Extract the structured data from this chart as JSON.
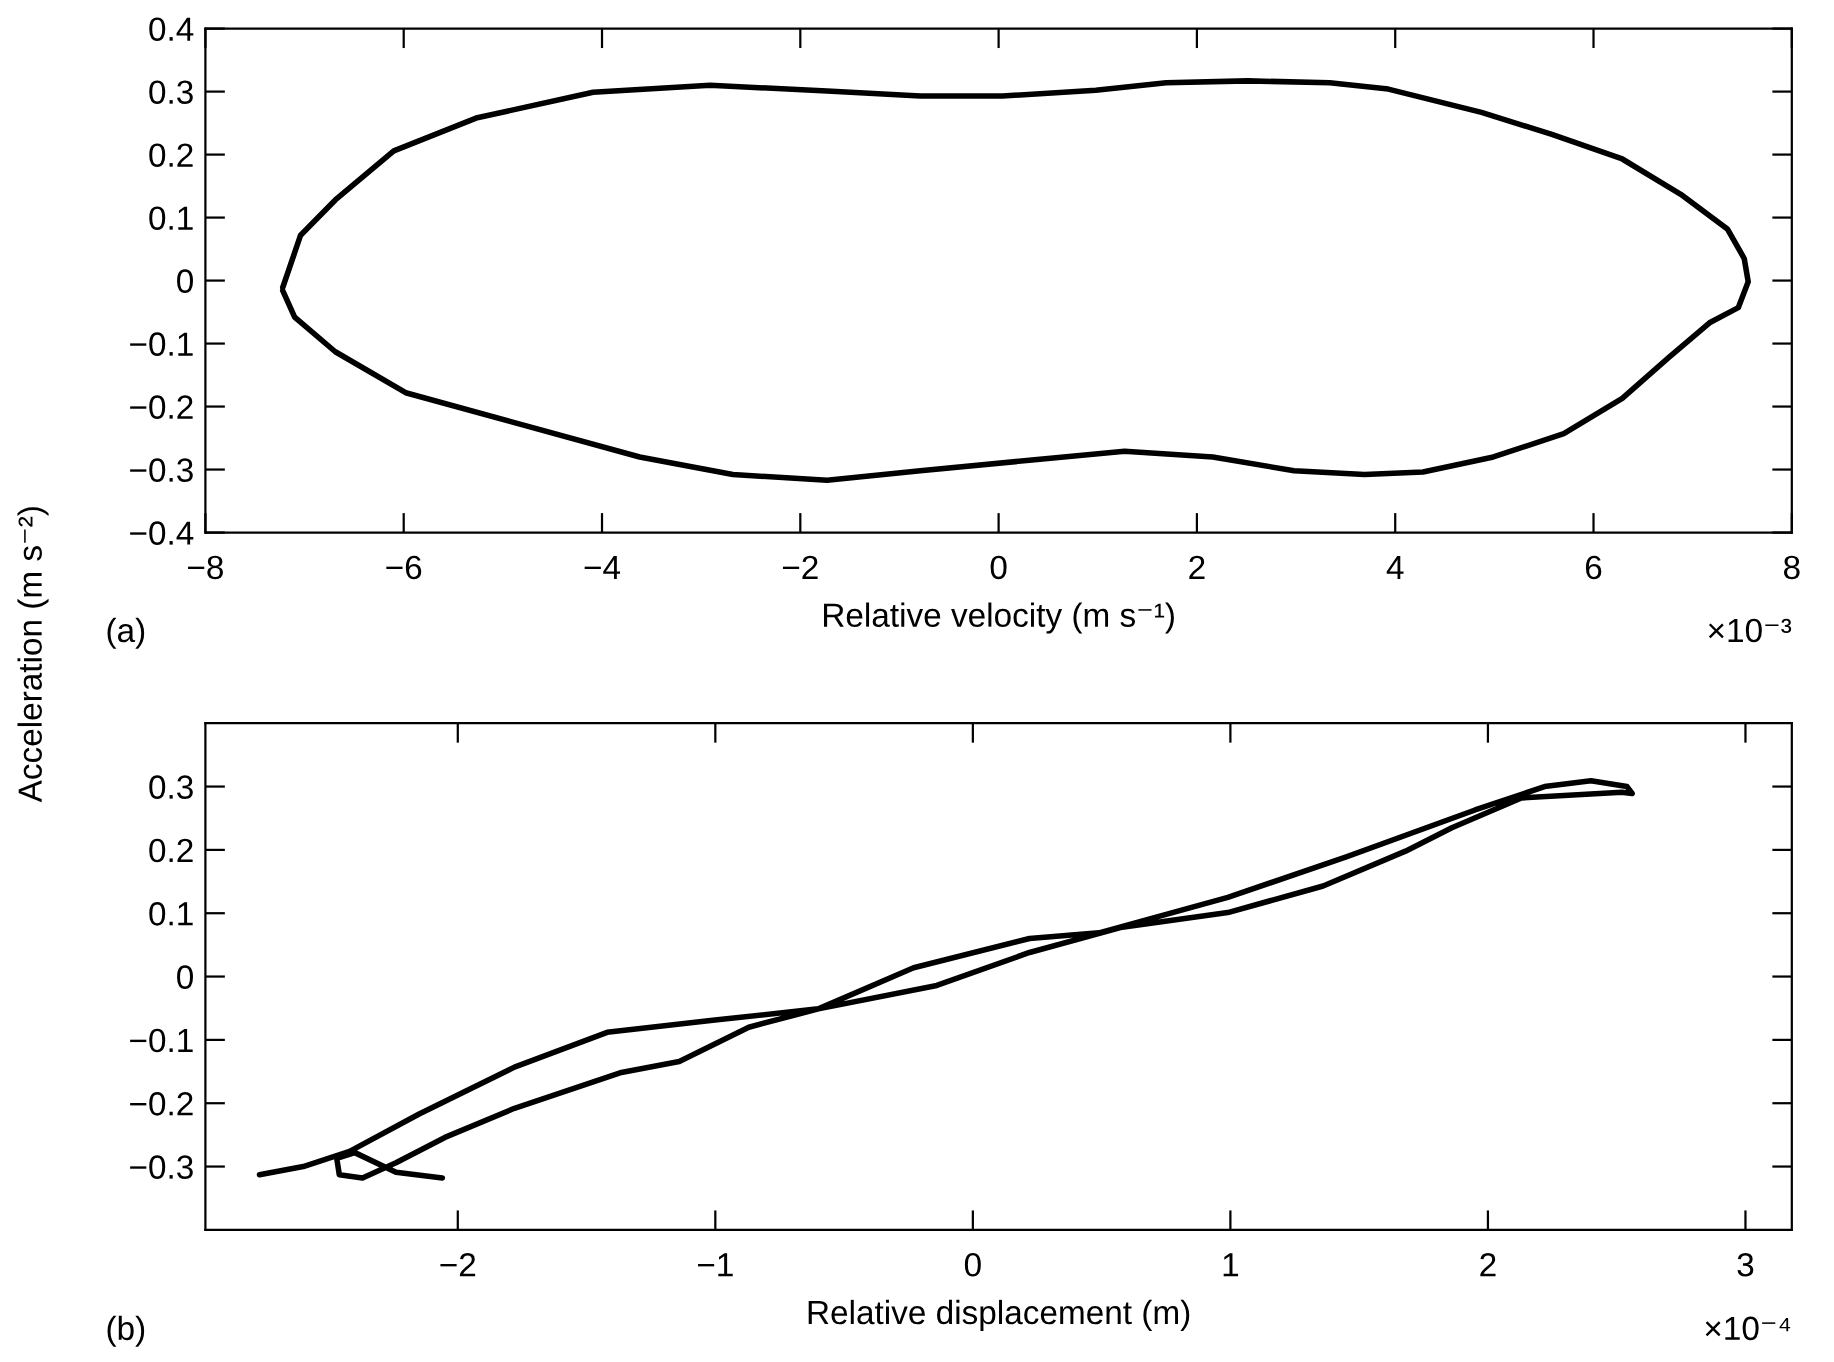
{
  "chart_data": [
    {
      "type": "line",
      "xlabel": "Relative velocity (m s⁻¹)",
      "ylabel": "Acceleration (m s⁻²)",
      "annotations": [
        "(a)",
        "×10⁻³"
      ],
      "xlim": [
        -8,
        8
      ],
      "xticks": [
        -8,
        -6,
        -4,
        -2,
        0,
        2,
        4,
        6,
        8
      ],
      "ylim": [
        -0.4,
        0.4
      ],
      "yticks": [
        -0.4,
        -0.3,
        -0.2,
        -0.1,
        0,
        0.1,
        0.2,
        0.3,
        0.4
      ],
      "grid": false,
      "series": [
        {
          "color": "#000000",
          "x": [
            -7.22,
            -7.04,
            -6.69,
            -6.1,
            -5.27,
            -4.09,
            -2.91,
            -1.73,
            -0.79,
            0.04,
            0.98,
            1.69,
            2.51,
            3.34,
            3.93,
            4.87,
            5.58,
            6.29,
            6.88,
            7.35,
            7.52,
            7.56,
            7.46,
            7.17,
            6.76,
            6.29,
            5.7,
            4.99,
            4.28,
            3.69,
            2.98,
            2.16,
            1.27,
            0.39,
            -0.79,
            -1.73,
            -2.68,
            -3.62,
            -4.92,
            -5.98,
            -6.69,
            -7.1,
            -7.22
          ],
          "values": [
            -0.011,
            0.072,
            0.128,
            0.206,
            0.258,
            0.299,
            0.31,
            0.301,
            0.293,
            0.293,
            0.302,
            0.314,
            0.317,
            0.314,
            0.304,
            0.267,
            0.232,
            0.193,
            0.137,
            0.082,
            0.035,
            -0.002,
            -0.043,
            -0.067,
            -0.122,
            -0.187,
            -0.243,
            -0.28,
            -0.304,
            -0.308,
            -0.302,
            -0.28,
            -0.271,
            -0.284,
            -0.302,
            -0.317,
            -0.308,
            -0.28,
            -0.224,
            -0.178,
            -0.113,
            -0.058,
            -0.016
          ]
        }
      ]
    },
    {
      "type": "line",
      "xlabel": "Relative displacement (m)",
      "annotations": [
        "(b)",
        "×10⁻⁴"
      ],
      "xlim": [
        -2.98,
        3.18
      ],
      "xticks": [
        -2,
        -1,
        0,
        1,
        2,
        3
      ],
      "ylim": [
        -0.4,
        0.4
      ],
      "yticks": [
        -0.3,
        -0.2,
        -0.1,
        0,
        0.1,
        0.2,
        0.3
      ],
      "grid": false,
      "series": [
        {
          "color": "#000000",
          "x": [
            -2.77,
            -2.6,
            -2.42,
            -2.15,
            -1.78,
            -1.42,
            -1.01,
            -0.6,
            -0.23,
            0.22,
            0.49,
            0.99,
            1.45,
            1.95,
            2.22,
            2.4,
            2.54,
            2.56,
            2.52,
            2.13,
            1.86,
            1.68,
            1.36,
            0.99,
            0.58,
            0.22,
            -0.14,
            -0.6,
            -0.87,
            -1.14,
            -1.37,
            -1.78,
            -2.05,
            -2.24,
            -2.37,
            -2.46,
            -2.47,
            -2.4,
            -2.24,
            -2.06
          ],
          "values": [
            -0.313,
            -0.3,
            -0.276,
            -0.217,
            -0.143,
            -0.088,
            -0.069,
            -0.051,
            0.014,
            0.06,
            0.069,
            0.125,
            0.189,
            0.263,
            0.3,
            0.309,
            0.3,
            0.289,
            0.291,
            0.282,
            0.235,
            0.198,
            0.143,
            0.101,
            0.078,
            0.038,
            -0.014,
            -0.051,
            -0.08,
            -0.134,
            -0.152,
            -0.208,
            -0.254,
            -0.294,
            -0.318,
            -0.313,
            -0.287,
            -0.278,
            -0.309,
            -0.318
          ]
        }
      ]
    }
  ]
}
